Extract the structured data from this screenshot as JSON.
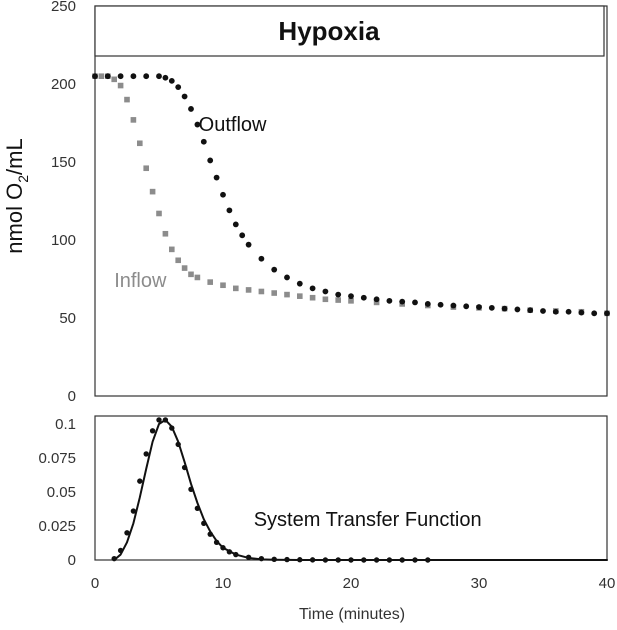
{
  "chart_data": [
    {
      "type": "scatter",
      "title": "Hypoxia",
      "ylabel": "nmol O",
      "ylabel_subscript": "2",
      "ylabel_suffix": "/mL",
      "xlim": [
        0,
        40
      ],
      "ylim": [
        0,
        250
      ],
      "yticks": [
        "0",
        "50",
        "100",
        "150",
        "200",
        "250"
      ],
      "grid": false,
      "series": [
        {
          "name": "Inflow",
          "color": "#8c8c8c",
          "marker": "square",
          "points": [
            [
              0,
              205
            ],
            [
              0.5,
              205
            ],
            [
              1,
              205
            ],
            [
              1.5,
              203
            ],
            [
              2,
              199
            ],
            [
              2.5,
              190
            ],
            [
              3,
              177
            ],
            [
              3.5,
              162
            ],
            [
              4,
              146
            ],
            [
              4.5,
              131
            ],
            [
              5,
              117
            ],
            [
              5.5,
              104
            ],
            [
              6,
              94
            ],
            [
              6.5,
              87
            ],
            [
              7,
              82
            ],
            [
              7.5,
              78
            ],
            [
              8,
              76
            ],
            [
              9,
              73
            ],
            [
              10,
              71
            ],
            [
              11,
              69
            ],
            [
              12,
              68
            ],
            [
              13,
              67
            ],
            [
              14,
              66
            ],
            [
              15,
              65
            ],
            [
              16,
              64
            ],
            [
              17,
              63
            ],
            [
              18,
              62
            ],
            [
              19,
              61.5
            ],
            [
              20,
              61
            ],
            [
              22,
              60
            ],
            [
              24,
              59
            ],
            [
              26,
              58
            ],
            [
              28,
              57
            ],
            [
              30,
              56.5
            ],
            [
              32,
              56
            ],
            [
              34,
              55
            ],
            [
              36,
              54.5
            ],
            [
              38,
              54
            ],
            [
              40,
              53
            ]
          ]
        },
        {
          "name": "Outflow",
          "color": "#111111",
          "marker": "circle",
          "points": [
            [
              0,
              205
            ],
            [
              1,
              205
            ],
            [
              2,
              205
            ],
            [
              3,
              205
            ],
            [
              4,
              205
            ],
            [
              5,
              205
            ],
            [
              5.5,
              204
            ],
            [
              6,
              202
            ],
            [
              6.5,
              198
            ],
            [
              7,
              192
            ],
            [
              7.5,
              184
            ],
            [
              8,
              174
            ],
            [
              8.5,
              163
            ],
            [
              9,
              151
            ],
            [
              9.5,
              140
            ],
            [
              10,
              129
            ],
            [
              10.5,
              119
            ],
            [
              11,
              110
            ],
            [
              11.5,
              103
            ],
            [
              12,
              97
            ],
            [
              13,
              88
            ],
            [
              14,
              81
            ],
            [
              15,
              76
            ],
            [
              16,
              72
            ],
            [
              17,
              69
            ],
            [
              18,
              67
            ],
            [
              19,
              65
            ],
            [
              20,
              64
            ],
            [
              21,
              63
            ],
            [
              22,
              62
            ],
            [
              23,
              61
            ],
            [
              24,
              60.5
            ],
            [
              25,
              60
            ],
            [
              26,
              59
            ],
            [
              27,
              58.5
            ],
            [
              28,
              58
            ],
            [
              29,
              57.5
            ],
            [
              30,
              57
            ],
            [
              31,
              56.5
            ],
            [
              32,
              56
            ],
            [
              33,
              55.5
            ],
            [
              34,
              55
            ],
            [
              35,
              54.5
            ],
            [
              36,
              54
            ],
            [
              37,
              54
            ],
            [
              38,
              53.5
            ],
            [
              39,
              53
            ],
            [
              40,
              53
            ]
          ]
        }
      ],
      "annotations": [
        {
          "text": "Outflow",
          "x": 8.1,
          "y": 170,
          "color": "#111111"
        },
        {
          "text": "Inflow",
          "x": 1.5,
          "y": 70,
          "color": "#8c8c8c"
        }
      ]
    },
    {
      "type": "line",
      "xlabel": "Time (minutes)",
      "xlim": [
        0,
        40
      ],
      "ylim": [
        0,
        0.1
      ],
      "xticks": [
        "0",
        "10",
        "20",
        "30",
        "40"
      ],
      "yticks": [
        "0",
        "0.025",
        "0.05",
        "0.075",
        "0.1"
      ],
      "grid": false,
      "series": [
        {
          "name": "System Transfer Function",
          "color": "#111111",
          "style": "line",
          "points": [
            [
              1.5,
              0
            ],
            [
              2,
              0.004
            ],
            [
              2.5,
              0.013
            ],
            [
              3,
              0.027
            ],
            [
              3.5,
              0.046
            ],
            [
              4,
              0.067
            ],
            [
              4.5,
              0.087
            ],
            [
              5,
              0.1
            ],
            [
              5.5,
              0.103
            ],
            [
              6,
              0.098
            ],
            [
              6.5,
              0.087
            ],
            [
              7,
              0.072
            ],
            [
              7.5,
              0.056
            ],
            [
              8,
              0.042
            ],
            [
              8.5,
              0.03
            ],
            [
              9,
              0.021
            ],
            [
              9.5,
              0.014
            ],
            [
              10,
              0.009
            ],
            [
              11,
              0.004
            ],
            [
              12,
              0.0015
            ],
            [
              13,
              0.0005
            ],
            [
              14,
              0.0002
            ],
            [
              16,
              0
            ],
            [
              40,
              0
            ]
          ]
        },
        {
          "name": "System Transfer Function",
          "color": "#111111",
          "style": "dots",
          "points": [
            [
              1.5,
              0.001
            ],
            [
              2,
              0.007
            ],
            [
              2.5,
              0.02
            ],
            [
              3,
              0.036
            ],
            [
              3.5,
              0.058
            ],
            [
              4,
              0.078
            ],
            [
              4.5,
              0.095
            ],
            [
              5,
              0.103
            ],
            [
              5.5,
              0.103
            ],
            [
              6,
              0.097
            ],
            [
              6.5,
              0.085
            ],
            [
              7,
              0.068
            ],
            [
              7.5,
              0.052
            ],
            [
              8,
              0.038
            ],
            [
              8.5,
              0.027
            ],
            [
              9,
              0.019
            ],
            [
              9.5,
              0.013
            ],
            [
              10,
              0.009
            ],
            [
              10.5,
              0.006
            ],
            [
              11,
              0.004
            ],
            [
              12,
              0.002
            ],
            [
              13,
              0.001
            ],
            [
              14,
              0.0005
            ],
            [
              15,
              0.0003
            ],
            [
              16,
              0.0002
            ],
            [
              17,
              0.0001
            ],
            [
              18,
              0
            ],
            [
              19,
              0
            ],
            [
              20,
              0
            ],
            [
              21,
              0
            ],
            [
              22,
              0
            ],
            [
              23,
              0
            ],
            [
              24,
              0
            ],
            [
              25,
              0
            ],
            [
              26,
              0
            ]
          ]
        }
      ],
      "annotations": [
        {
          "text": "System Transfer Function",
          "x": 12.4,
          "y": 0.025,
          "color": "#111111"
        }
      ]
    }
  ]
}
